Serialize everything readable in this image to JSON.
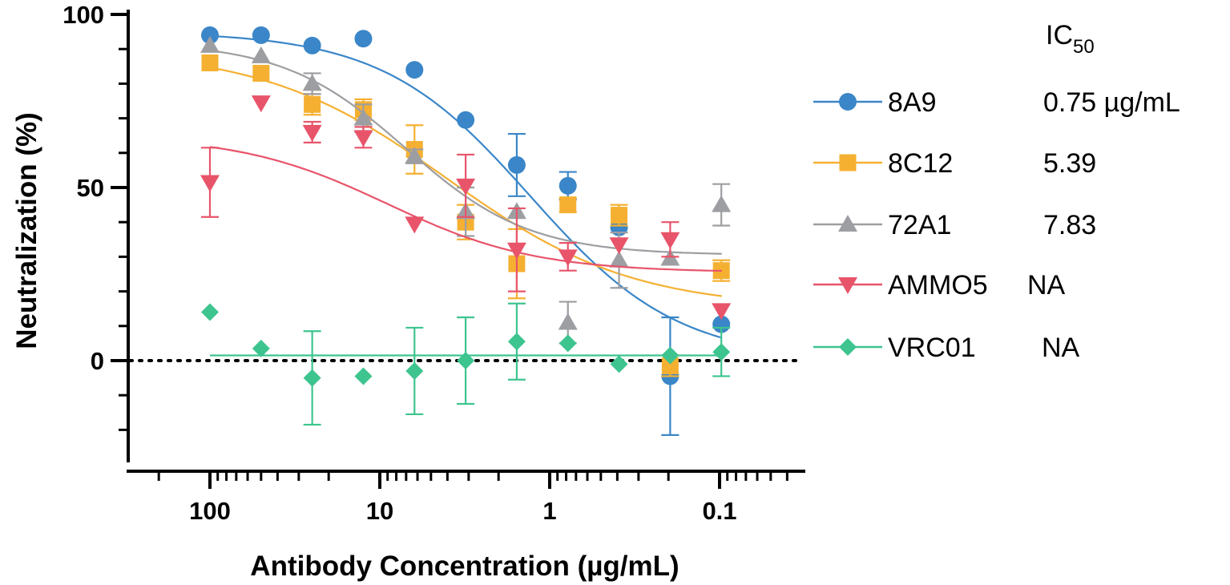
{
  "chart_data": {
    "type": "scatter",
    "title": "",
    "xlabel": "Antibody Concentration (µg/mL)",
    "ylabel": "Neutralization (%)",
    "x_scale": "log",
    "x_reversed": true,
    "xlim": [
      250,
      0.03
    ],
    "ylim": [
      -30,
      100
    ],
    "x_ticks": [
      100,
      10,
      1,
      0.1
    ],
    "x_tick_labels": [
      "100",
      "10",
      "1",
      "0.1"
    ],
    "y_ticks": [
      0,
      50,
      100
    ],
    "y_tick_labels": [
      "0",
      "50",
      "100"
    ],
    "reference_line": {
      "y": 0,
      "style": "dotted"
    },
    "legend_header": {
      "main": "IC",
      "sub": "50"
    },
    "concentrations": [
      100,
      50,
      25,
      12.5,
      6.25,
      3.125,
      1.5625,
      0.78125,
      0.390625,
      0.1953125,
      0.09765625
    ],
    "series": [
      {
        "name": "8A9",
        "ic50": "0.75 µg/mL",
        "color": "#3a86c8",
        "marker": "circle",
        "values": [
          94,
          94,
          91,
          93,
          84,
          69.5,
          56.5,
          50.5,
          38.5,
          -4.5,
          10.5
        ],
        "errors": [
          null,
          null,
          null,
          null,
          null,
          null,
          9,
          4,
          null,
          17,
          null
        ],
        "fit": {
          "bottom": 0,
          "top": 95,
          "ec50": 1.3,
          "hill": 1.0
        }
      },
      {
        "name": "8C12",
        "ic50": "5.39",
        "color": "#f5b032",
        "marker": "square",
        "values": [
          86,
          83,
          74,
          72.5,
          61,
          40,
          28,
          45,
          42,
          -1.5,
          26
        ],
        "errors": [
          null,
          null,
          3,
          3,
          7,
          5,
          10,
          2,
          3,
          3,
          3
        ],
        "fit": {
          "bottom": 15,
          "top": 90,
          "ec50": 4.0,
          "hill": 0.8
        }
      },
      {
        "name": "72A1",
        "ic50": "7.83",
        "color": "#9d9ea2",
        "marker": "triangle-up",
        "values": [
          91,
          88,
          80,
          70,
          59,
          43,
          43,
          11,
          29,
          29.5,
          45
        ],
        "errors": [
          null,
          null,
          3,
          4,
          2,
          7,
          null,
          6,
          8,
          null,
          6
        ],
        "fit": {
          "bottom": 30.5,
          "top": 92,
          "ec50": 7.0,
          "hill": 1.2
        }
      },
      {
        "name": "AMMO5",
        "ic50": "NA",
        "color": "#e8546a",
        "marker": "triangle-down",
        "values": [
          51.5,
          74.5,
          66,
          64.5,
          39.5,
          50.5,
          32,
          30,
          33.5,
          35,
          14.5
        ],
        "errors": [
          10,
          null,
          3,
          3,
          null,
          9,
          12,
          4,
          null,
          5,
          null
        ],
        "fit": {
          "bottom": 25.5,
          "top": 65,
          "ec50": 9.0,
          "hill": 1.0
        }
      },
      {
        "name": "VRC01",
        "ic50": "NA",
        "color": "#3ec48f",
        "marker": "diamond",
        "values": [
          14,
          3.5,
          -5,
          -4.5,
          -3,
          0,
          5.5,
          5,
          -1,
          1.5,
          2.5
        ],
        "errors": [
          null,
          null,
          13.5,
          null,
          12.5,
          12.5,
          11,
          null,
          null,
          null,
          7
        ],
        "fit": {
          "flat": 1.5
        }
      }
    ]
  }
}
